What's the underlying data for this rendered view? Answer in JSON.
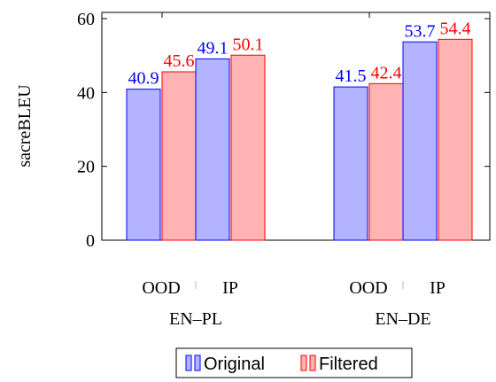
{
  "chart_data": {
    "type": "bar",
    "ylabel": "sacreBLEU",
    "ylim": [
      0,
      60
    ],
    "yticks": [
      0,
      20,
      40,
      60
    ],
    "groups": [
      {
        "name": "EN–PL",
        "subcategories": [
          "OOD",
          "IP"
        ]
      },
      {
        "name": "EN–DE",
        "subcategories": [
          "OOD",
          "IP"
        ]
      }
    ],
    "series": [
      {
        "name": "Original",
        "color": "#0000ff",
        "fill": "#b3b3ff",
        "values": [
          40.9,
          49.1,
          41.5,
          53.7
        ]
      },
      {
        "name": "Filtered",
        "color": "#ff0000",
        "fill": "#ffb3b3",
        "values": [
          45.6,
          50.1,
          42.4,
          54.4
        ]
      }
    ],
    "value_labels": [
      "40.9",
      "45.6",
      "49.1",
      "50.1",
      "41.5",
      "42.4",
      "53.7",
      "54.4"
    ],
    "legend": {
      "placement": "bottom",
      "entries": [
        "Original",
        "Filtered"
      ]
    },
    "grid": false
  }
}
